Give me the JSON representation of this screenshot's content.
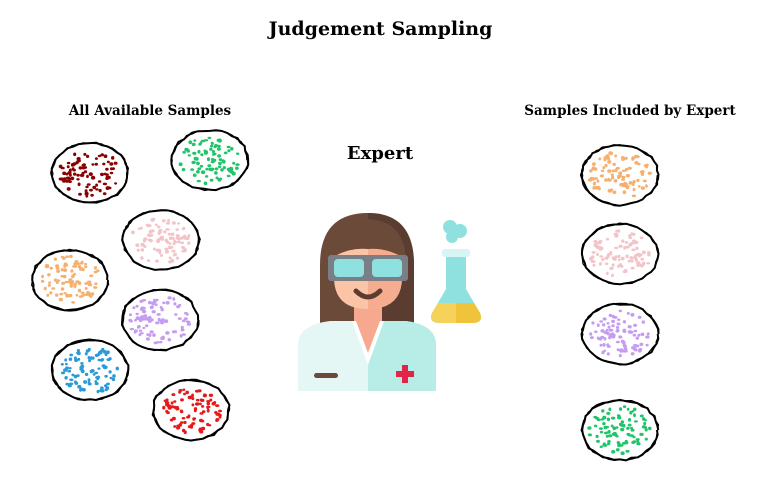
{
  "title": "Judgement Sampling",
  "left_heading": "All Available Samples",
  "right_heading": "Samples Included by Expert",
  "expert_label": "Expert",
  "icons": {
    "expert": "scientist-icon",
    "flask": "flask-icon"
  },
  "groups": {
    "all_available": [
      {
        "name": "dark-red-group",
        "color": "#8b0000"
      },
      {
        "name": "green-group",
        "color": "#20c46a"
      },
      {
        "name": "pink-group",
        "color": "#f2c4c8"
      },
      {
        "name": "orange-group",
        "color": "#f5b070"
      },
      {
        "name": "purple-group",
        "color": "#c59cf0"
      },
      {
        "name": "blue-group",
        "color": "#2a9ad8"
      },
      {
        "name": "red-group",
        "color": "#e81818"
      }
    ],
    "included_by_expert": [
      {
        "name": "orange-group",
        "color": "#f5b070"
      },
      {
        "name": "pink-group",
        "color": "#f2c4c8"
      },
      {
        "name": "purple-group",
        "color": "#c59cf0"
      },
      {
        "name": "green-group",
        "color": "#20c46a"
      }
    ]
  }
}
